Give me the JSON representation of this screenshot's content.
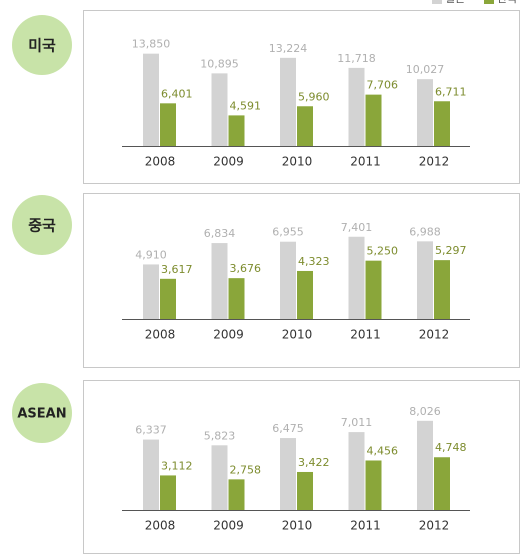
{
  "legend": [
    "일본",
    "한국"
  ],
  "chart_data": [
    {
      "type": "bar",
      "title": "미국",
      "categories": [
        "2008",
        "2009",
        "2010",
        "2011",
        "2012"
      ],
      "ylim": [
        0,
        15000
      ],
      "series": [
        {
          "color": "#d3d3d3",
          "values": [
            13850,
            10895,
            13224,
            11718,
            10027
          ],
          "value_labels": [
            "13,850",
            "10,895",
            "13,224",
            "11,718",
            "10,027"
          ]
        },
        {
          "color": "#8aa63a",
          "values": [
            6401,
            4591,
            5960,
            7706,
            6711
          ],
          "value_labels": [
            "6,401",
            "4,591",
            "5,960",
            "7,706",
            "6,711"
          ]
        }
      ]
    },
    {
      "type": "bar",
      "title": "중국",
      "categories": [
        "2008",
        "2009",
        "2010",
        "2011",
        "2012"
      ],
      "ylim": [
        0,
        9000
      ],
      "series": [
        {
          "color": "#d3d3d3",
          "values": [
            4910,
            6834,
            6955,
            7401,
            6988
          ],
          "value_labels": [
            "4,910",
            "6,834",
            "6,955",
            "7,401",
            "6,988"
          ]
        },
        {
          "color": "#8aa63a",
          "values": [
            3617,
            3676,
            4323,
            5250,
            5297
          ],
          "value_labels": [
            "3,617",
            "3,676",
            "4,323",
            "5,250",
            "5,297"
          ]
        }
      ]
    },
    {
      "type": "bar",
      "title": "ASEAN",
      "categories": [
        "2008",
        "2009",
        "2010",
        "2011",
        "2012"
      ],
      "ylim": [
        0,
        9000
      ],
      "series": [
        {
          "color": "#d3d3d3",
          "values": [
            6337,
            5823,
            6475,
            7011,
            8026
          ],
          "value_labels": [
            "6,337",
            "5,823",
            "6,475",
            "7,011",
            "8,026"
          ]
        },
        {
          "color": "#8aa63a",
          "values": [
            3112,
            2758,
            3422,
            4456,
            4748
          ],
          "value_labels": [
            "3,112",
            "2,758",
            "3,422",
            "4,456",
            "4,748"
          ]
        }
      ]
    }
  ]
}
